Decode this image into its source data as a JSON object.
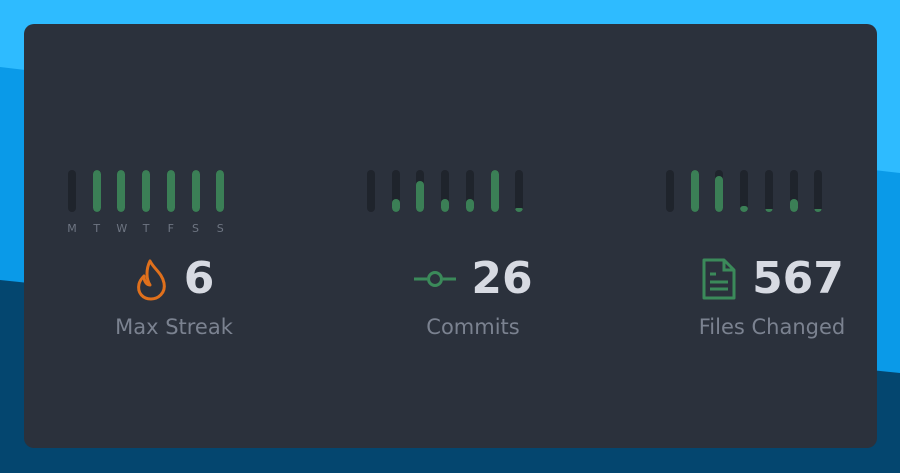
{
  "colors": {
    "bar_fill": "#3b7f56",
    "bar_track": "#1f242c",
    "flame": "#e0701c",
    "accent_green": "#3b8a5a"
  },
  "days": [
    "M",
    "T",
    "W",
    "T",
    "F",
    "S",
    "S"
  ],
  "stats": [
    {
      "icon": "flame-icon",
      "value": "6",
      "label": "Max Streak",
      "bars": [
        0,
        1,
        1,
        1,
        1,
        1,
        1
      ]
    },
    {
      "icon": "git-commit-icon",
      "value": "26",
      "label": "Commits",
      "bars": [
        0,
        0.3,
        0.75,
        0.3,
        0.3,
        1,
        0.1
      ]
    },
    {
      "icon": "file-icon",
      "value": "567",
      "label": "Files Changed",
      "bars": [
        0,
        1,
        0.85,
        0.15,
        0.03,
        0.3,
        0.05
      ]
    }
  ]
}
